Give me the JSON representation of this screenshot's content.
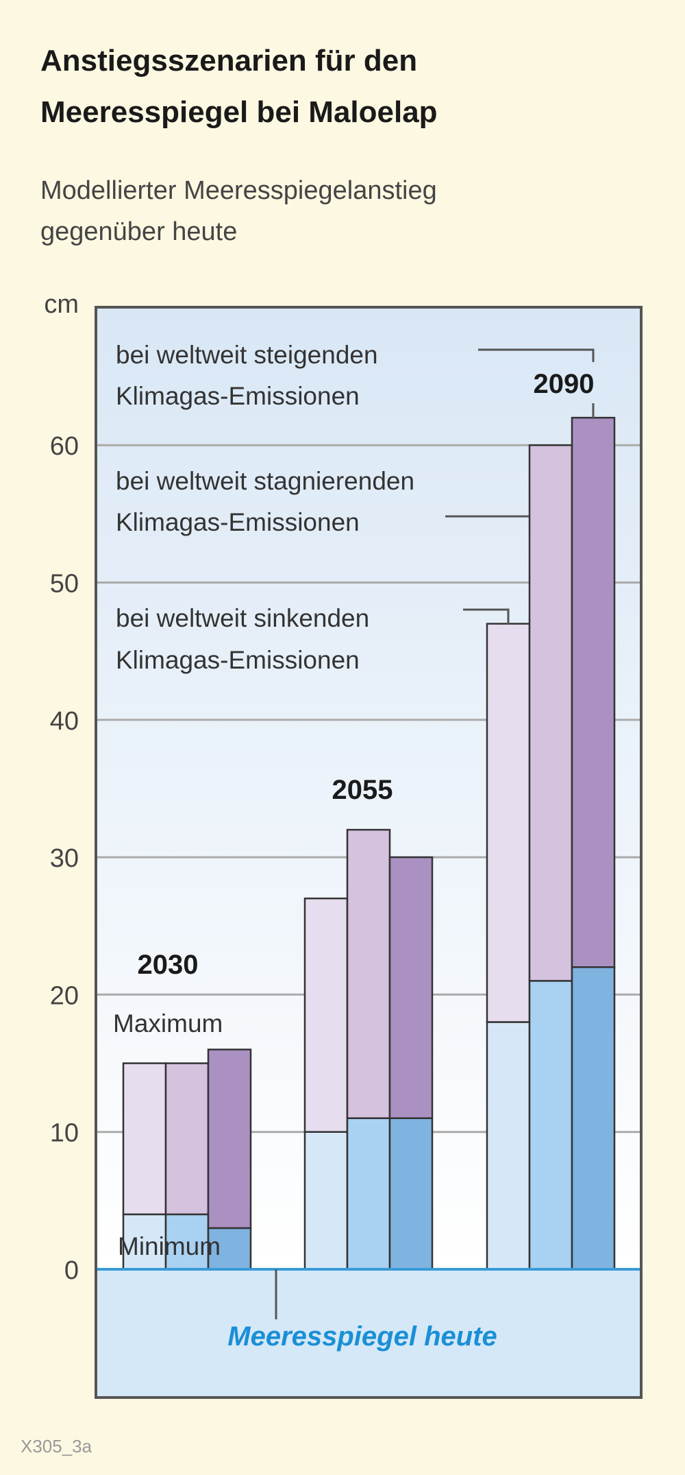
{
  "title_line1": "Anstiegsszenarien für den",
  "title_line2": "Meeresspiegel bei Maloelap",
  "subtitle_line1": "Modellierter Meeresspiegelanstieg",
  "subtitle_line2": "gegenüber heute",
  "source_code": "X305_3a",
  "chart_data": {
    "type": "bar",
    "subtype": "floating range bars (minimum to maximum)",
    "ylabel": "cm",
    "ylim": [
      -9.4,
      69
    ],
    "yticks": [
      0,
      10,
      20,
      30,
      40,
      50,
      60
    ],
    "grid": true,
    "categories": [
      "2030",
      "2055",
      "2090"
    ],
    "scenarios": [
      {
        "name_line1": "bei weltweit sinkenden",
        "name_line2": "Klimagas-Emissionen",
        "min_color": "#d6e8f8",
        "max_color": "#e6ddee"
      },
      {
        "name_line1": "bei weltweit stagnierenden",
        "name_line2": "Klimagas-Emissionen",
        "min_color": "#a9d1f2",
        "max_color": "#d4c2de"
      },
      {
        "name_line1": "bei weltweit steigenden",
        "name_line2": "Klimagas-Emissionen",
        "min_color": "#7fb3e0",
        "max_color": "#ab91c2"
      }
    ],
    "series": [
      {
        "name": "Minimum",
        "values": [
          [
            4,
            4,
            3
          ],
          [
            10,
            11,
            11
          ],
          [
            18,
            21,
            22
          ]
        ]
      },
      {
        "name": "Maximum",
        "values": [
          [
            15,
            15,
            16
          ],
          [
            27,
            32,
            30
          ],
          [
            47,
            60,
            62
          ]
        ]
      }
    ],
    "annotations": {
      "maximum": "Maximum",
      "minimum": "Minimum",
      "baseline": "Meeresspiegel heute"
    },
    "colors": {
      "background": "#fdf8e1",
      "baseline_area": "#d5e8f7",
      "baseline_text": "#1a8fd6"
    }
  }
}
